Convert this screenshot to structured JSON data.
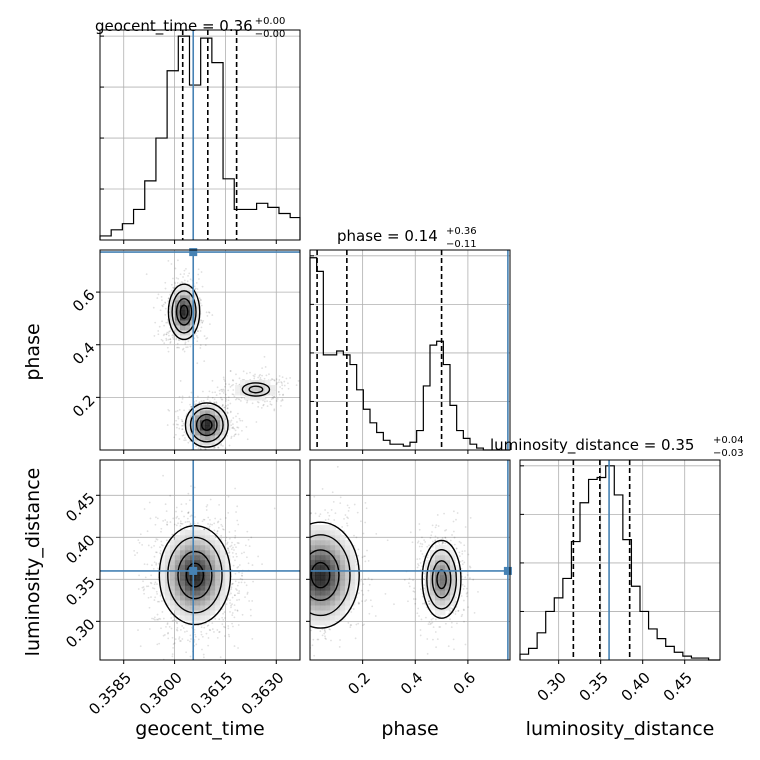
{
  "chart_data": {
    "type": "corner",
    "colors": {
      "truth": "#4682b4",
      "hist": "#000000",
      "quantile": "#000000",
      "grid": "#b0b0b0"
    },
    "parameters": [
      {
        "name": "geocent_time",
        "xlabel": "geocent_time",
        "ylabel": "",
        "range": [
          0.3578,
          0.3637
        ],
        "ticks": [
          0.3585,
          0.36,
          0.3615,
          0.363
        ],
        "tick_labels": [
          "0.3585",
          "0.3600",
          "0.3615",
          "0.3630"
        ]
      },
      {
        "name": "phase",
        "xlabel": "phase",
        "ylabel": "phase",
        "range": [
          0.0,
          0.76
        ],
        "ticks": [
          0.2,
          0.4,
          0.6
        ],
        "tick_labels": [
          "0.2",
          "0.4",
          "0.6"
        ]
      },
      {
        "name": "luminosity_distance",
        "xlabel": "luminosity_distance",
        "ylabel": "luminosity_distance",
        "range": [
          0.254,
          0.492
        ],
        "ticks": [
          0.3,
          0.35,
          0.4,
          0.45
        ],
        "tick_labels": [
          "0.30",
          "0.35",
          "0.40",
          "0.45"
        ]
      }
    ],
    "titles": [
      {
        "main": "geocent_time = 0.36",
        "sup": "+0.00",
        "sub": "−0.00"
      },
      {
        "main": "phase = 0.14",
        "sup": "+0.36",
        "sub": "−0.11"
      },
      {
        "main": "luminosity_distance = 0.35",
        "sup": "+0.04",
        "sub": "−0.03"
      }
    ],
    "truths": [
      0.36055,
      0.752,
      0.36
    ],
    "histograms": [
      {
        "param": "geocent_time",
        "edges": [
          0.3578,
          0.35813,
          0.35846,
          0.35879,
          0.35912,
          0.35945,
          0.35978,
          0.36011,
          0.36044,
          0.36077,
          0.3611,
          0.36143,
          0.36176,
          0.36209,
          0.36242,
          0.36275,
          0.36308,
          0.36341,
          0.3637
        ],
        "counts": [
          0.02,
          0.05,
          0.08,
          0.15,
          0.29,
          0.5,
          0.83,
          1.0,
          0.76,
          0.99,
          0.87,
          0.3,
          0.15,
          0.15,
          0.18,
          0.16,
          0.13,
          0.11
        ],
        "quantiles": [
          0.36024,
          0.36098,
          0.36183
        ]
      },
      {
        "param": "phase",
        "edges": [
          0.0,
          0.0253,
          0.0507,
          0.076,
          0.1013,
          0.1267,
          0.152,
          0.1773,
          0.2027,
          0.228,
          0.2533,
          0.2787,
          0.304,
          0.3293,
          0.3547,
          0.38,
          0.4053,
          0.4307,
          0.456,
          0.4813,
          0.5067,
          0.532,
          0.5573,
          0.5827,
          0.608,
          0.6333,
          0.6587,
          0.684,
          0.7093,
          0.7347,
          0.76
        ],
        "counts": [
          0.99,
          0.92,
          0.49,
          0.49,
          0.51,
          0.49,
          0.44,
          0.31,
          0.21,
          0.14,
          0.09,
          0.05,
          0.03,
          0.03,
          0.02,
          0.04,
          0.1,
          0.33,
          0.54,
          0.56,
          0.44,
          0.23,
          0.1,
          0.06,
          0.03,
          0.01,
          0.0,
          0.0,
          0.0,
          0.0
        ],
        "quantiles": [
          0.027,
          0.14,
          0.5
        ]
      },
      {
        "param": "luminosity_distance",
        "edges": [
          0.254,
          0.2642,
          0.2744,
          0.2846,
          0.2948,
          0.305,
          0.3152,
          0.3254,
          0.3356,
          0.3458,
          0.356,
          0.3662,
          0.3764,
          0.3866,
          0.3968,
          0.407,
          0.4172,
          0.4274,
          0.4376,
          0.4478,
          0.458,
          0.4682,
          0.4784,
          0.492
        ],
        "counts": [
          0.03,
          0.06,
          0.14,
          0.25,
          0.32,
          0.42,
          0.61,
          0.81,
          0.93,
          0.94,
          1.0,
          0.85,
          0.62,
          0.38,
          0.25,
          0.16,
          0.11,
          0.07,
          0.04,
          0.02,
          0.01,
          0.01,
          0.0
        ],
        "quantiles": [
          0.3175,
          0.349,
          0.3845
        ]
      }
    ],
    "pair_panels": [
      {
        "x": "geocent_time",
        "y": "phase",
        "modes": [
          {
            "cx": 0.36028,
            "cy": 0.525,
            "sx": 0.00022,
            "sy": 0.05,
            "w": 1.0
          },
          {
            "cx": 0.36095,
            "cy": 0.095,
            "sx": 0.0003,
            "sy": 0.04,
            "w": 1.0
          },
          {
            "cx": 0.3624,
            "cy": 0.23,
            "sx": 0.0004,
            "sy": 0.025,
            "w": 0.35
          }
        ]
      },
      {
        "x": "geocent_time",
        "y": "luminosity_distance",
        "modes": [
          {
            "cx": 0.3606,
            "cy": 0.355,
            "sx": 0.0005,
            "sy": 0.028,
            "w": 1.0
          }
        ]
      },
      {
        "x": "phase",
        "y": "luminosity_distance",
        "modes": [
          {
            "cx": 0.04,
            "cy": 0.355,
            "sx": 0.07,
            "sy": 0.03,
            "w": 1.0
          },
          {
            "cx": 0.5,
            "cy": 0.35,
            "sx": 0.035,
            "sy": 0.022,
            "w": 0.7
          }
        ]
      }
    ]
  }
}
